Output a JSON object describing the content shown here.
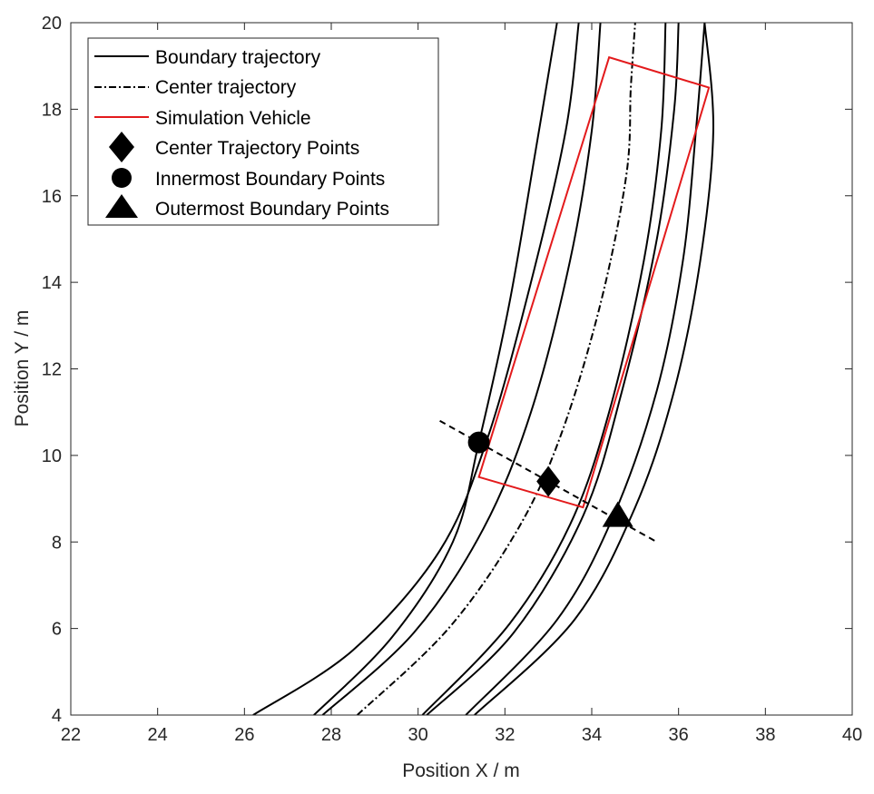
{
  "chart_data": {
    "type": "line",
    "title": "",
    "xlabel": "Position X / m",
    "ylabel": "Position Y / m",
    "xlim": [
      22,
      40
    ],
    "ylim": [
      4,
      20
    ],
    "xticks": [
      "22",
      "24",
      "26",
      "28",
      "30",
      "32",
      "34",
      "36",
      "38",
      "40"
    ],
    "yticks": [
      "4",
      "6",
      "8",
      "10",
      "12",
      "14",
      "16",
      "18",
      "20"
    ],
    "grid": false,
    "legend_position": "top-left",
    "legend": [
      {
        "label": "Boundary trajectory",
        "marker": "solid-line",
        "color": "#000000"
      },
      {
        "label": "Center trajectory",
        "marker": "dash-dot-line",
        "color": "#000000"
      },
      {
        "label": "Simulation Vehicle",
        "marker": "solid-line",
        "color": "#e31a1c"
      },
      {
        "label": "Center Trajectory Points",
        "marker": "diamond",
        "color": "#000000"
      },
      {
        "label": "Innermost Boundary Points",
        "marker": "circle",
        "color": "#000000"
      },
      {
        "label": "Outermost Boundary Points",
        "marker": "triangle",
        "color": "#000000"
      }
    ],
    "boundary_trajectories": [
      {
        "points": [
          [
            26.2,
            4
          ],
          [
            28.5,
            5.5
          ],
          [
            30.5,
            7.8
          ],
          [
            31.6,
            10.4
          ],
          [
            32.6,
            14
          ],
          [
            33.4,
            17.5
          ],
          [
            33.7,
            20
          ]
        ]
      },
      {
        "points": [
          [
            27.6,
            4
          ],
          [
            29.4,
            5.8
          ],
          [
            30.8,
            8.0
          ],
          [
            31.4,
            10.3
          ],
          [
            32.1,
            13.5
          ],
          [
            32.7,
            17
          ],
          [
            33.2,
            20
          ]
        ]
      },
      {
        "points": [
          [
            27.8,
            4
          ],
          [
            29.9,
            5.9
          ],
          [
            31.5,
            8.3
          ],
          [
            32.6,
            11
          ],
          [
            33.5,
            14.5
          ],
          [
            34.0,
            17.5
          ],
          [
            34.2,
            20
          ]
        ]
      },
      {
        "points": [
          [
            30.1,
            4
          ],
          [
            32.1,
            6.1
          ],
          [
            33.5,
            8.4
          ],
          [
            34.4,
            11
          ],
          [
            35.2,
            14.5
          ],
          [
            35.6,
            17.5
          ],
          [
            35.7,
            20
          ]
        ]
      },
      {
        "points": [
          [
            30.2,
            4
          ],
          [
            32.2,
            5.9
          ],
          [
            33.8,
            8.6
          ],
          [
            34.7,
            11.5
          ],
          [
            35.5,
            15
          ],
          [
            35.9,
            18
          ],
          [
            36.0,
            20
          ]
        ]
      },
      {
        "points": [
          [
            31.1,
            4
          ],
          [
            33.2,
            6.2
          ],
          [
            34.5,
            8.6
          ],
          [
            35.5,
            11.5
          ],
          [
            36.1,
            14.5
          ],
          [
            36.4,
            17.5
          ],
          [
            36.6,
            20
          ]
        ]
      },
      {
        "points": [
          [
            31.3,
            4
          ],
          [
            33.6,
            6.2
          ],
          [
            35.0,
            8.8
          ],
          [
            35.9,
            11.5
          ],
          [
            36.5,
            14.5
          ],
          [
            36.8,
            17.5
          ],
          [
            36.6,
            20
          ]
        ]
      }
    ],
    "center_trajectory": {
      "points": [
        [
          28.6,
          4
        ],
        [
          30.7,
          6
        ],
        [
          32.3,
          8.3
        ],
        [
          33.3,
          10.5
        ],
        [
          34.2,
          13.5
        ],
        [
          34.8,
          16.5
        ],
        [
          34.9,
          18.5
        ],
        [
          35.0,
          20
        ]
      ]
    },
    "simulation_vehicle": {
      "corners": [
        [
          31.4,
          9.5
        ],
        [
          33.8,
          8.8
        ],
        [
          36.7,
          18.5
        ],
        [
          34.4,
          19.2
        ]
      ]
    },
    "normal_line": {
      "points": [
        [
          30.5,
          10.8
        ],
        [
          35.5,
          8.0
        ]
      ]
    },
    "center_trajectory_point": {
      "x": 33.0,
      "y": 9.4
    },
    "innermost_boundary_point": {
      "x": 31.4,
      "y": 10.3
    },
    "outermost_boundary_point": {
      "x": 34.6,
      "y": 8.6
    }
  }
}
